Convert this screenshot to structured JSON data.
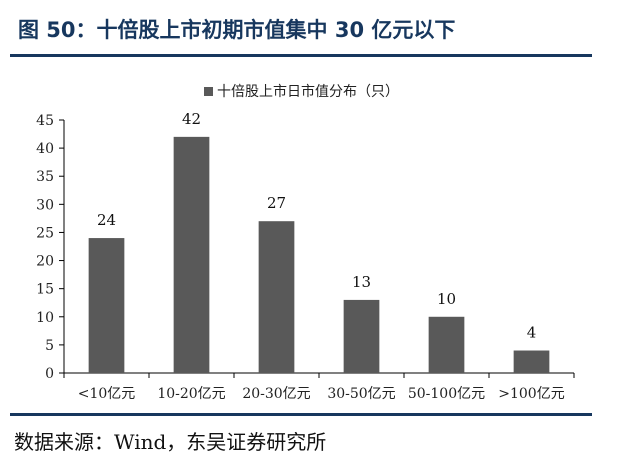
{
  "figure": {
    "title": "图 50：十倍股上市初期市值集中 30 亿元以下",
    "source": "数据来源：Wind，东吴证券研究所"
  },
  "colors": {
    "bar": "#595959",
    "title": "#17375e",
    "rule": "#17375e",
    "axis": "#000000"
  },
  "chart_data": {
    "type": "bar",
    "categories": [
      "<10亿元",
      "10-20亿元",
      "20-30亿元",
      "30-50亿元",
      "50-100亿元",
      ">100亿元"
    ],
    "series": [
      {
        "name": "十倍股上市日市值分布（只）",
        "values": [
          24,
          42,
          27,
          13,
          10,
          4
        ]
      }
    ],
    "ylim": [
      0,
      45
    ],
    "yticks": [
      0,
      5,
      10,
      15,
      20,
      25,
      30,
      35,
      40,
      45
    ],
    "xlabel": "",
    "ylabel": "",
    "grid": false,
    "legend": "top-center",
    "data_labels": true
  }
}
